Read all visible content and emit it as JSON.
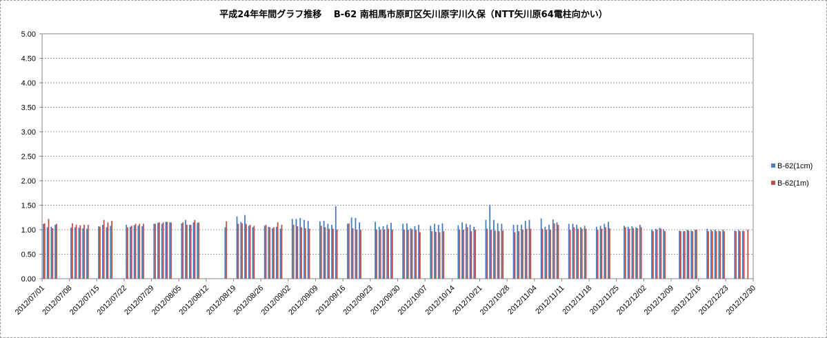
{
  "chart_data": {
    "type": "bar",
    "title": "平成24年年間グラフ推移　 B-62 南相馬市原町区矢川原字川久保（NTT矢川原64電柱向かい）",
    "xlabel": "",
    "ylabel": "",
    "ylim": [
      0,
      5.0
    ],
    "yticks": [
      "0.00",
      "0.50",
      "1.00",
      "1.50",
      "2.00",
      "2.50",
      "3.00",
      "3.50",
      "4.00",
      "4.50",
      "5.00"
    ],
    "xtick_labels": [
      "2012/07/01",
      "2012/07/08",
      "2012/07/15",
      "2012/07/22",
      "2012/07/29",
      "2012/08/05",
      "2012/08/12",
      "2012/08/19",
      "2012/08/26",
      "2012/09/02",
      "2012/09/09",
      "2012/09/16",
      "2012/09/23",
      "2012/09/30",
      "2012/10/07",
      "2012/10/14",
      "2012/10/21",
      "2012/10/28",
      "2012/11/04",
      "2012/11/11",
      "2012/11/18",
      "2012/11/25",
      "2012/12/02",
      "2012/12/09",
      "2012/12/16",
      "2012/12/23",
      "2012/12/30"
    ],
    "grid": true,
    "legend_position": "right",
    "series": [
      {
        "name": "B-62(1cm)",
        "color": "#4a7ebb",
        "values": [
          1.12,
          1.05,
          1.06,
          1.1,
          null,
          null,
          null,
          1.04,
          1.05,
          1.04,
          1.03,
          1.02,
          null,
          null,
          1.07,
          1.1,
          1.05,
          1.08,
          null,
          null,
          null,
          1.1,
          1.06,
          1.09,
          1.08,
          1.07,
          null,
          null,
          1.12,
          1.14,
          1.12,
          1.16,
          1.15,
          null,
          null,
          1.13,
          1.2,
          1.1,
          1.15,
          1.14,
          null,
          null,
          null,
          null,
          null,
          null,
          1.05,
          null,
          null,
          1.27,
          1.16,
          1.3,
          1.08,
          1.05,
          null,
          null,
          1.08,
          1.06,
          1.03,
          1.06,
          1.02,
          null,
          null,
          1.22,
          1.22,
          1.24,
          1.2,
          1.18,
          null,
          null,
          1.17,
          1.18,
          1.12,
          1.1,
          1.48,
          null,
          null,
          1.12,
          1.25,
          1.24,
          1.15,
          null,
          null,
          null,
          1.16,
          1.06,
          1.07,
          1.1,
          1.14,
          null,
          null,
          1.12,
          1.13,
          1.03,
          1.07,
          1.1,
          null,
          null,
          1.08,
          1.12,
          1.1,
          1.13,
          null,
          null,
          null,
          1.09,
          1.15,
          1.12,
          1.1,
          1.06,
          null,
          null,
          1.2,
          1.51,
          1.2,
          1.13,
          1.12,
          null,
          null,
          1.1,
          1.1,
          1.1,
          1.18,
          1.2,
          null,
          null,
          1.23,
          1.06,
          1.1,
          1.21,
          1.15,
          null,
          null,
          1.12,
          1.12,
          1.1,
          1.05,
          1.08,
          null,
          null,
          1.06,
          1.08,
          1.12,
          1.16,
          null,
          null,
          null,
          1.08,
          1.06,
          1.07,
          1.05,
          1.1,
          null,
          null,
          1.0,
          1.02,
          1.04,
          1.01,
          null,
          null,
          null,
          0.98,
          0.97,
          1.0,
          0.98,
          1.0,
          null,
          null,
          1.02,
          1.0,
          1.0,
          0.98,
          1.0,
          null,
          null,
          0.98,
          0.99,
          0.98,
          null,
          null
        ]
      },
      {
        "name": "B-62(1m)",
        "color": "#c0504d",
        "values": [
          1.13,
          1.22,
          1.03,
          1.12,
          null,
          null,
          null,
          1.13,
          1.1,
          1.09,
          1.1,
          1.1,
          null,
          null,
          1.06,
          1.2,
          1.15,
          1.18,
          null,
          null,
          null,
          1.05,
          1.08,
          1.12,
          1.12,
          1.12,
          null,
          null,
          1.12,
          1.15,
          1.15,
          1.16,
          1.15,
          null,
          null,
          1.15,
          1.1,
          1.1,
          1.2,
          1.15,
          null,
          null,
          null,
          null,
          null,
          null,
          1.17,
          null,
          null,
          1.12,
          1.13,
          1.12,
          1.1,
          1.08,
          null,
          null,
          1.1,
          1.05,
          1.05,
          1.15,
          1.1,
          null,
          null,
          1.1,
          1.07,
          1.05,
          1.03,
          1.02,
          null,
          null,
          1.08,
          1.05,
          1.02,
          1.02,
          1.0,
          null,
          null,
          1.13,
          1.03,
          1.0,
          1.0,
          null,
          null,
          null,
          1.0,
          1.0,
          1.0,
          1.02,
          1.0,
          null,
          null,
          1.0,
          1.0,
          1.0,
          1.0,
          0.95,
          null,
          null,
          0.97,
          0.96,
          0.95,
          0.97,
          null,
          null,
          null,
          1.0,
          1.0,
          1.05,
          0.97,
          1.0,
          null,
          null,
          1.02,
          1.0,
          0.98,
          0.97,
          0.98,
          null,
          null,
          0.95,
          0.97,
          1.0,
          1.02,
          1.02,
          null,
          null,
          1.02,
          1.0,
          1.0,
          1.13,
          1.1,
          null,
          null,
          1.0,
          1.05,
          1.02,
          1.02,
          1.02,
          null,
          null,
          1.0,
          1.02,
          1.05,
          1.03,
          null,
          null,
          null,
          1.05,
          1.02,
          1.03,
          1.03,
          1.05,
          null,
          null,
          0.97,
          1.0,
          1.02,
          0.97,
          null,
          null,
          null,
          0.97,
          0.97,
          0.98,
          0.97,
          1.0,
          null,
          null,
          0.97,
          0.97,
          0.97,
          0.97,
          0.97,
          null,
          null,
          0.97,
          0.97,
          0.97,
          1.0,
          null
        ]
      }
    ]
  }
}
